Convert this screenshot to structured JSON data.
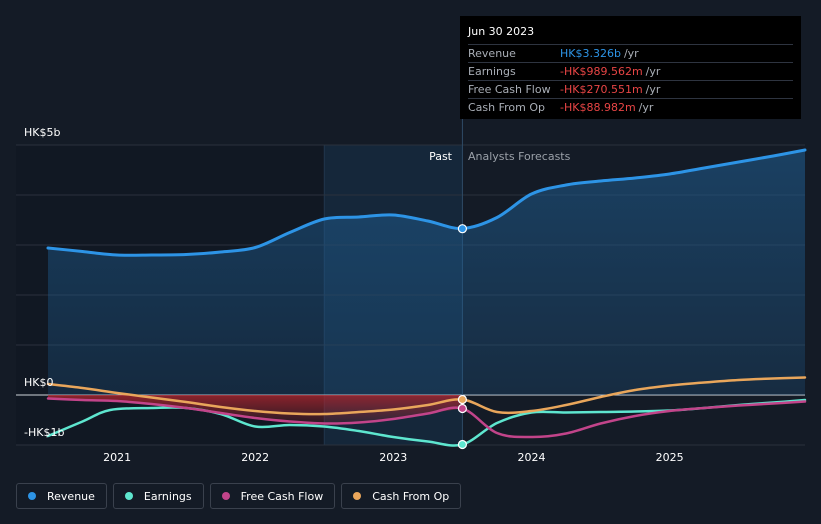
{
  "chart_data": {
    "type": "line",
    "y_axis": {
      "top_label": "HK$5b",
      "zero_label": "HK$0",
      "bottom_label": "-HK$1b",
      "ylim": [
        -1,
        5
      ]
    },
    "x_axis": {
      "ticks": [
        "2021",
        "2022",
        "2023",
        "2024",
        "2025"
      ],
      "xlim": [
        2020.5,
        2025.98
      ]
    },
    "divider_x": 2023.5,
    "highlight_start_x": 2022.5,
    "region_labels": {
      "past": "Past",
      "forecast": "Analysts Forecasts"
    },
    "series": [
      {
        "name": "Revenue",
        "color": "#2d94e6",
        "points": [
          [
            2020.5,
            2.94
          ],
          [
            2020.75,
            2.87
          ],
          [
            2021.0,
            2.8
          ],
          [
            2021.25,
            2.8
          ],
          [
            2021.5,
            2.81
          ],
          [
            2021.75,
            2.86
          ],
          [
            2022.0,
            2.95
          ],
          [
            2022.25,
            3.25
          ],
          [
            2022.5,
            3.52
          ],
          [
            2022.75,
            3.56
          ],
          [
            2023.0,
            3.6
          ],
          [
            2023.25,
            3.48
          ],
          [
            2023.5,
            3.33
          ],
          [
            2023.75,
            3.55
          ],
          [
            2024.0,
            4.02
          ],
          [
            2024.25,
            4.2
          ],
          [
            2024.5,
            4.28
          ],
          [
            2024.75,
            4.34
          ],
          [
            2025.0,
            4.42
          ],
          [
            2025.25,
            4.54
          ],
          [
            2025.5,
            4.66
          ],
          [
            2025.75,
            4.78
          ],
          [
            2025.98,
            4.9
          ]
        ]
      },
      {
        "name": "Earnings",
        "color": "#5ee6cf",
        "points": [
          [
            2020.5,
            -0.82
          ],
          [
            2020.75,
            -0.53
          ],
          [
            2020.95,
            -0.3
          ],
          [
            2021.25,
            -0.26
          ],
          [
            2021.5,
            -0.26
          ],
          [
            2021.75,
            -0.38
          ],
          [
            2022.0,
            -0.63
          ],
          [
            2022.25,
            -0.6
          ],
          [
            2022.5,
            -0.63
          ],
          [
            2022.75,
            -0.72
          ],
          [
            2023.0,
            -0.84
          ],
          [
            2023.25,
            -0.93
          ],
          [
            2023.5,
            -0.99
          ],
          [
            2023.75,
            -0.56
          ],
          [
            2024.0,
            -0.35
          ],
          [
            2024.25,
            -0.35
          ],
          [
            2024.5,
            -0.34
          ],
          [
            2024.75,
            -0.33
          ],
          [
            2025.0,
            -0.31
          ],
          [
            2025.25,
            -0.26
          ],
          [
            2025.5,
            -0.2
          ],
          [
            2025.75,
            -0.15
          ],
          [
            2025.98,
            -0.1
          ]
        ]
      },
      {
        "name": "Free Cash Flow",
        "color": "#c2448a",
        "points": [
          [
            2020.5,
            -0.07
          ],
          [
            2020.75,
            -0.1
          ],
          [
            2021.0,
            -0.12
          ],
          [
            2021.25,
            -0.18
          ],
          [
            2021.5,
            -0.26
          ],
          [
            2021.75,
            -0.36
          ],
          [
            2022.0,
            -0.46
          ],
          [
            2022.25,
            -0.53
          ],
          [
            2022.5,
            -0.57
          ],
          [
            2022.75,
            -0.55
          ],
          [
            2023.0,
            -0.48
          ],
          [
            2023.25,
            -0.37
          ],
          [
            2023.5,
            -0.27
          ],
          [
            2023.75,
            -0.76
          ],
          [
            2024.0,
            -0.84
          ],
          [
            2024.25,
            -0.77
          ],
          [
            2024.5,
            -0.57
          ],
          [
            2024.75,
            -0.42
          ],
          [
            2025.0,
            -0.32
          ],
          [
            2025.25,
            -0.26
          ],
          [
            2025.5,
            -0.21
          ],
          [
            2025.75,
            -0.17
          ],
          [
            2025.98,
            -0.13
          ]
        ]
      },
      {
        "name": "Cash From Op",
        "color": "#e9a65b",
        "points": [
          [
            2020.5,
            0.22
          ],
          [
            2020.75,
            0.14
          ],
          [
            2021.0,
            0.04
          ],
          [
            2021.25,
            -0.05
          ],
          [
            2021.5,
            -0.14
          ],
          [
            2021.75,
            -0.24
          ],
          [
            2022.0,
            -0.32
          ],
          [
            2022.25,
            -0.37
          ],
          [
            2022.5,
            -0.38
          ],
          [
            2022.75,
            -0.34
          ],
          [
            2023.0,
            -0.29
          ],
          [
            2023.25,
            -0.2
          ],
          [
            2023.5,
            -0.09
          ],
          [
            2023.75,
            -0.34
          ],
          [
            2024.0,
            -0.32
          ],
          [
            2024.25,
            -0.2
          ],
          [
            2024.5,
            -0.04
          ],
          [
            2024.75,
            0.1
          ],
          [
            2025.0,
            0.19
          ],
          [
            2025.25,
            0.25
          ],
          [
            2025.5,
            0.3
          ],
          [
            2025.75,
            0.33
          ],
          [
            2025.98,
            0.35
          ]
        ]
      }
    ],
    "highlight": {
      "x": 2023.5,
      "date": "Jun 30 2023",
      "rows": [
        {
          "name": "Revenue",
          "value": "HK$3.326b",
          "unit": "/yr",
          "color": "#2d94e6",
          "y": 3.326
        },
        {
          "name": "Earnings",
          "value": "-HK$989.562m",
          "unit": "/yr",
          "color": "#e84545",
          "y": -0.99
        },
        {
          "name": "Free Cash Flow",
          "value": "-HK$270.551m",
          "unit": "/yr",
          "color": "#e84545",
          "y": -0.27
        },
        {
          "name": "Cash From Op",
          "value": "-HK$88.982m",
          "unit": "/yr",
          "color": "#e84545",
          "y": -0.09
        }
      ]
    },
    "legend": [
      {
        "label": "Revenue",
        "color": "#2d94e6"
      },
      {
        "label": "Earnings",
        "color": "#5ee6cf"
      },
      {
        "label": "Free Cash Flow",
        "color": "#c2448a"
      },
      {
        "label": "Cash From Op",
        "color": "#e9a65b"
      }
    ]
  }
}
